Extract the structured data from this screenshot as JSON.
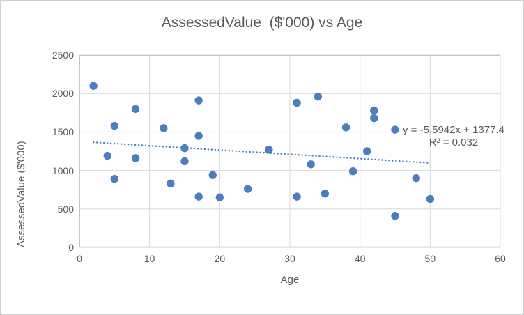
{
  "chart_data": {
    "type": "scatter",
    "title": "AssessedValue  ($'000) vs Age",
    "xlabel": "Age",
    "ylabel": "AssessedValue ($'000)",
    "xlim": [
      0,
      60
    ],
    "ylim": [
      0,
      2500
    ],
    "x_ticks": [
      0,
      10,
      20,
      30,
      40,
      50,
      60
    ],
    "y_ticks": [
      0,
      500,
      1000,
      1500,
      2000,
      2500
    ],
    "grid": true,
    "legend": false,
    "points": [
      [
        2,
        2100
      ],
      [
        4,
        1190
      ],
      [
        5,
        1580
      ],
      [
        5,
        890
      ],
      [
        8,
        1800
      ],
      [
        8,
        1160
      ],
      [
        12,
        1550
      ],
      [
        13,
        830
      ],
      [
        15,
        1290
      ],
      [
        15,
        1120
      ],
      [
        17,
        1910
      ],
      [
        17,
        1450
      ],
      [
        17,
        660
      ],
      [
        19,
        940
      ],
      [
        20,
        650
      ],
      [
        24,
        760
      ],
      [
        27,
        1270
      ],
      [
        31,
        1880
      ],
      [
        31,
        660
      ],
      [
        33,
        1080
      ],
      [
        34,
        1960
      ],
      [
        35,
        700
      ],
      [
        38,
        1560
      ],
      [
        39,
        990
      ],
      [
        41,
        1250
      ],
      [
        42,
        1780
      ],
      [
        42,
        1680
      ],
      [
        45,
        1530
      ],
      [
        45,
        410
      ],
      [
        48,
        900
      ],
      [
        50,
        630
      ]
    ],
    "trendline": {
      "type": "linear",
      "style": "dotted",
      "slope": -5.5942,
      "intercept": 1377.4,
      "x_start": 2,
      "x_end": 50,
      "equation": "y = -5.5942x + 1377.4",
      "r2": "R² = 0.032"
    },
    "colors": {
      "marker": "#4a7ebd",
      "trendline": "#4a7ebd",
      "text": "#595959",
      "gridline": "#d9d9d9",
      "plot_border": "#c6c6c6",
      "axis_line": "#bfbfbf",
      "chart_border": "#d0cece",
      "background": "#ffffff"
    }
  }
}
